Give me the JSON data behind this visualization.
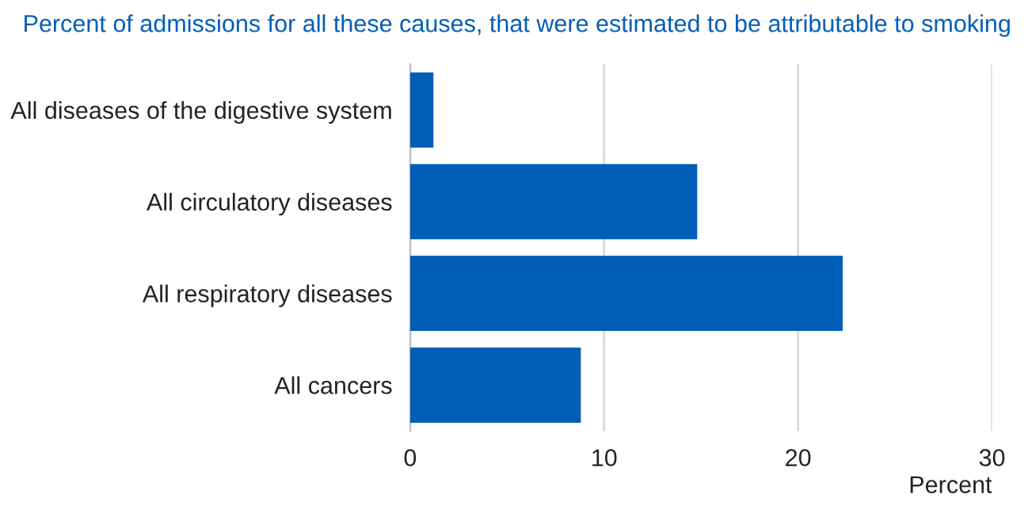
{
  "chart_data": {
    "type": "bar",
    "orientation": "horizontal",
    "title": "Percent of admissions for all these causes, that were estimated to be attributable to smoking",
    "categories": [
      "All diseases of the digestive system",
      "All circulatory diseases",
      "All respiratory diseases",
      "All cancers"
    ],
    "values": [
      1.2,
      14.8,
      22.3,
      8.8
    ],
    "color": "#005eb8",
    "xlabel": "Percent",
    "xlim": [
      0,
      30
    ],
    "xticks": [
      0,
      10,
      20,
      30
    ],
    "grid": "x"
  }
}
